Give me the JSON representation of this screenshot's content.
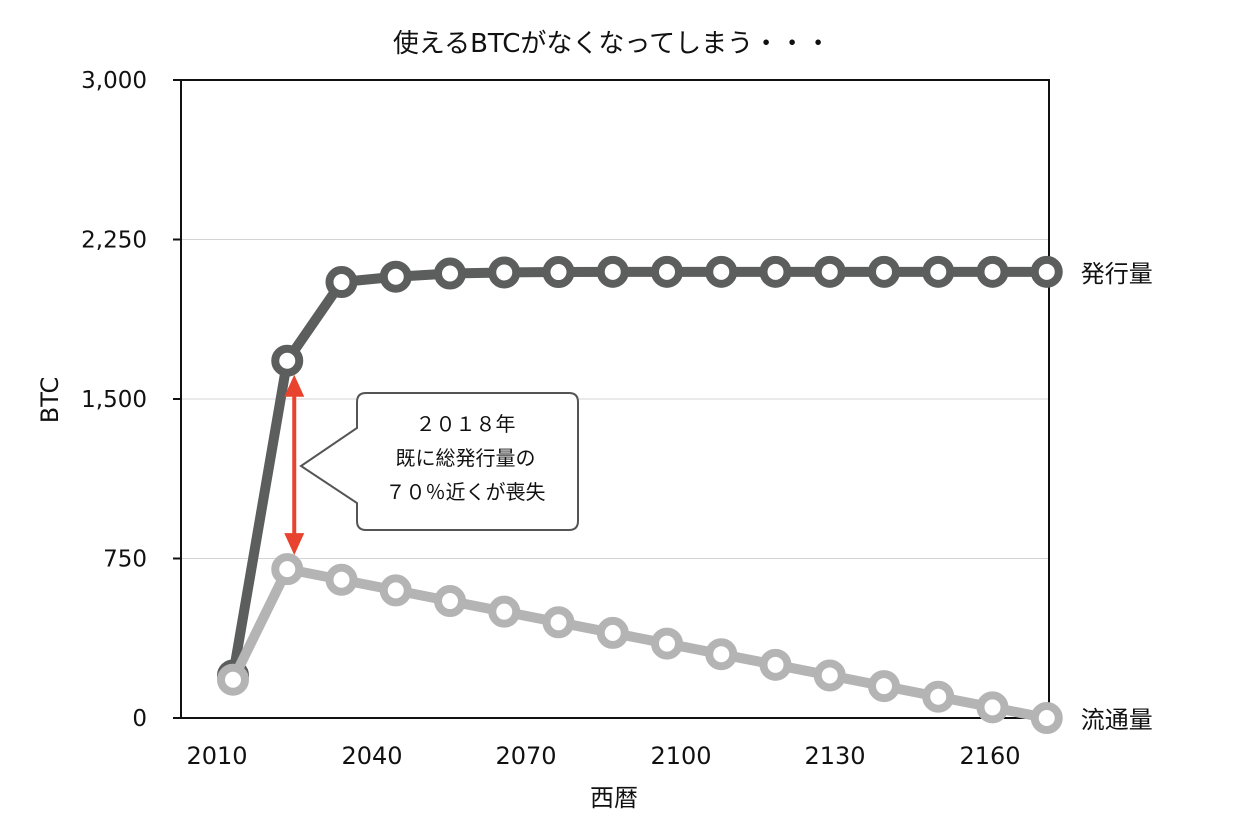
{
  "chart_data": {
    "type": "line",
    "title": "使えるBTCがなくなってしまう・・・",
    "xlabel": "西暦",
    "ylabel": "BTC",
    "xlim": [
      2005,
      2170
    ],
    "ylim": [
      0,
      3000
    ],
    "x_ticks": [
      2010,
      2040,
      2070,
      2100,
      2130,
      2160
    ],
    "x_tick_labels": [
      "2010",
      "2040",
      "2070",
      "2100",
      "2130",
      "2160"
    ],
    "y_ticks": [
      0,
      750,
      1500,
      2250,
      3000
    ],
    "y_tick_labels": [
      "0",
      "750",
      "1,500",
      "2,250",
      "3,000"
    ],
    "grid": "horizontal",
    "x": [
      2015,
      2025,
      2035,
      2045,
      2055,
      2065,
      2075,
      2085,
      2095,
      2105,
      2115,
      2125,
      2135,
      2145,
      2155,
      2165,
      2175
    ],
    "series": [
      {
        "name": "発行量",
        "color": "#5b5e5c",
        "values": [
          200,
          1680,
          2050,
          2075,
          2090,
          2095,
          2097,
          2098,
          2098,
          2098,
          2098,
          2098,
          2098,
          2098,
          2098,
          2098,
          2098
        ]
      },
      {
        "name": "流通量",
        "color": "#b4b4b4",
        "values": [
          180,
          700,
          650,
          600,
          550,
          500,
          450,
          400,
          350,
          300,
          250,
          200,
          150,
          100,
          50,
          0,
          0
        ]
      }
    ],
    "annotation": {
      "lines": [
        "２０１８年",
        "既に総発行量の",
        "７０％近くが喪失"
      ],
      "arrow_x": 2025,
      "arrow_from": 1680,
      "arrow_to": 700,
      "arrow_color": "#e8432e"
    }
  }
}
